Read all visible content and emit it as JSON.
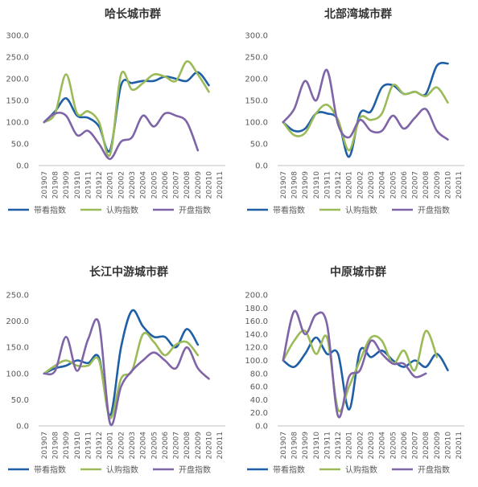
{
  "legend_labels": [
    "带看指数",
    "认购指数",
    "开盘指数"
  ],
  "colors": {
    "带看指数": "#1f5fa6",
    "认购指数": "#9bbb59",
    "开盘指数": "#7f64a8"
  },
  "chart_data": [
    {
      "type": "line",
      "title": "哈长城市群",
      "categories": [
        "201907",
        "201908",
        "201909",
        "201910",
        "201911",
        "201912",
        "202001",
        "202002",
        "202003",
        "202004",
        "202005",
        "202006",
        "202007",
        "202008",
        "202009",
        "202010",
        "202011"
      ],
      "ylim": [
        0,
        300
      ],
      "yticks": [
        "0.0",
        "50.0",
        "100.0",
        "150.0",
        "200.0",
        "250.0",
        "300.0"
      ],
      "series": [
        {
          "name": "带看指数",
          "values": [
            100,
            125,
            155,
            115,
            110,
            90,
            35,
            185,
            190,
            195,
            195,
            205,
            200,
            195,
            215,
            185,
            null
          ]
        },
        {
          "name": "认购指数",
          "values": [
            100,
            120,
            210,
            120,
            125,
            100,
            25,
            210,
            175,
            190,
            210,
            205,
            195,
            240,
            210,
            170,
            null
          ]
        },
        {
          "name": "开盘指数",
          "values": [
            100,
            120,
            115,
            70,
            80,
            50,
            15,
            55,
            65,
            115,
            90,
            120,
            115,
            100,
            35,
            null,
            null
          ]
        }
      ]
    },
    {
      "type": "line",
      "title": "北部湾城市群",
      "categories": [
        "201907",
        "201908",
        "201909",
        "201910",
        "201911",
        "201912",
        "202001",
        "202002",
        "202003",
        "202004",
        "202005",
        "202006",
        "202007",
        "202008",
        "202009",
        "202010",
        "202011"
      ],
      "ylim": [
        0,
        300
      ],
      "yticks": [
        "0.0",
        "50.0",
        "100.0",
        "150.0",
        "200.0",
        "250.0",
        "300.0"
      ],
      "series": [
        {
          "name": "带看指数",
          "values": [
            100,
            80,
            85,
            120,
            120,
            105,
            20,
            120,
            125,
            180,
            185,
            165,
            170,
            165,
            230,
            235,
            null
          ]
        },
        {
          "name": "认购指数",
          "values": [
            100,
            70,
            75,
            120,
            140,
            105,
            35,
            110,
            105,
            120,
            185,
            165,
            170,
            160,
            180,
            145,
            null
          ]
        },
        {
          "name": "开盘指数",
          "values": [
            100,
            130,
            195,
            150,
            220,
            95,
            65,
            105,
            80,
            80,
            115,
            85,
            110,
            130,
            80,
            60,
            null
          ]
        }
      ]
    },
    {
      "type": "line",
      "title": "长江中游城市群",
      "categories": [
        "201907",
        "201908",
        "201909",
        "201910",
        "201911",
        "201912",
        "202001",
        "202002",
        "202003",
        "202004",
        "202005",
        "202006",
        "202007",
        "202008",
        "202009",
        "202010",
        "202011"
      ],
      "ylim": [
        0,
        250
      ],
      "yticks": [
        "0.0",
        "50.0",
        "100.0",
        "150.0",
        "200.0",
        "250.0"
      ],
      "series": [
        {
          "name": "带看指数",
          "values": [
            100,
            110,
            115,
            125,
            120,
            130,
            20,
            150,
            220,
            190,
            170,
            170,
            150,
            185,
            155,
            null,
            null
          ]
        },
        {
          "name": "认购指数",
          "values": [
            100,
            115,
            125,
            115,
            115,
            125,
            15,
            90,
            105,
            175,
            160,
            135,
            155,
            160,
            135,
            null,
            null
          ]
        },
        {
          "name": "开盘指数",
          "values": [
            100,
            105,
            170,
            105,
            165,
            195,
            5,
            75,
            105,
            125,
            140,
            125,
            110,
            150,
            110,
            90,
            null
          ]
        }
      ]
    },
    {
      "type": "line",
      "title": "中原城市群",
      "categories": [
        "201907",
        "201908",
        "201909",
        "201910",
        "201911",
        "201912",
        "202001",
        "202002",
        "202003",
        "202004",
        "202005",
        "202006",
        "202007",
        "202008",
        "202009",
        "202010",
        "202011"
      ],
      "ylim": [
        0,
        200
      ],
      "yticks": [
        "0.0",
        "20.0",
        "40.0",
        "60.0",
        "80.0",
        "100.0",
        "120.0",
        "140.0",
        "160.0",
        "180.0",
        "200.0"
      ],
      "series": [
        {
          "name": "带看指数",
          "values": [
            100,
            90,
            110,
            135,
            110,
            110,
            25,
            115,
            105,
            115,
            100,
            90,
            100,
            90,
            110,
            85,
            null
          ]
        },
        {
          "name": "认购指数",
          "values": [
            100,
            130,
            145,
            110,
            135,
            25,
            60,
            100,
            135,
            130,
            95,
            115,
            85,
            145,
            105,
            null,
            null
          ]
        },
        {
          "name": "开盘指数",
          "values": [
            100,
            175,
            140,
            170,
            155,
            15,
            75,
            85,
            130,
            110,
            95,
            95,
            75,
            80,
            null,
            null,
            null
          ]
        }
      ]
    }
  ]
}
